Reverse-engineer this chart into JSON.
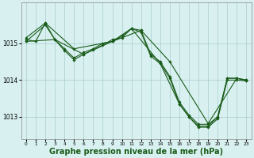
{
  "background_color": "#d8f0f0",
  "grid_color": "#aacccc",
  "line_color": "#1a5c1a",
  "marker_color": "#1a5c1a",
  "xlabel": "Graphe pression niveau de la mer (hPa)",
  "xlabel_fontsize": 7,
  "xlim": [
    -0.5,
    23.5
  ],
  "ylim": [
    1012.4,
    1016.1
  ],
  "yticks": [
    1013,
    1014,
    1015
  ],
  "xticks": [
    0,
    1,
    2,
    3,
    4,
    5,
    6,
    7,
    8,
    9,
    10,
    11,
    12,
    13,
    14,
    15,
    16,
    17,
    18,
    19,
    20,
    21,
    22,
    23
  ],
  "series": [
    {
      "x": [
        0,
        1,
        2,
        3,
        4,
        5,
        6,
        7,
        8,
        9,
        10,
        11,
        12,
        13,
        14,
        15,
        16,
        17,
        18,
        19,
        20,
        21,
        22,
        23
      ],
      "y": [
        1015.1,
        1015.05,
        1015.55,
        1015.1,
        1014.85,
        1014.6,
        1014.75,
        1014.85,
        1015.0,
        1015.05,
        1015.2,
        1015.4,
        1015.35,
        1014.7,
        1014.5,
        1014.1,
        1013.4,
        1013.05,
        1012.8,
        1012.8,
        1013.0,
        1014.05,
        1014.05,
        1014.0
      ]
    },
    {
      "x": [
        0,
        2,
        5,
        9,
        12,
        15,
        19,
        22,
        23
      ],
      "y": [
        1015.15,
        1015.55,
        1014.85,
        1015.05,
        1015.35,
        1014.5,
        1012.82,
        1014.05,
        1014.0
      ]
    },
    {
      "x": [
        0,
        2,
        3,
        4,
        5,
        6,
        7,
        8,
        9,
        10,
        11,
        12,
        13,
        14,
        15,
        16,
        17,
        18,
        19,
        20,
        21,
        22,
        23
      ],
      "y": [
        1015.05,
        1015.5,
        1015.1,
        1014.8,
        1014.55,
        1014.7,
        1014.82,
        1014.95,
        1015.1,
        1015.15,
        1015.4,
        1015.3,
        1014.65,
        1014.45,
        1014.05,
        1013.35,
        1013.0,
        1012.75,
        1012.75,
        1013.0,
        1014.05,
        1014.05,
        1013.98
      ]
    },
    {
      "x": [
        0,
        3,
        6,
        9,
        11,
        14,
        16,
        17,
        18,
        19,
        20,
        21,
        22,
        23
      ],
      "y": [
        1015.05,
        1015.1,
        1014.7,
        1015.05,
        1015.4,
        1014.45,
        1013.35,
        1013.0,
        1012.72,
        1012.72,
        1012.95,
        1014.0,
        1014.0,
        1013.98
      ]
    }
  ]
}
